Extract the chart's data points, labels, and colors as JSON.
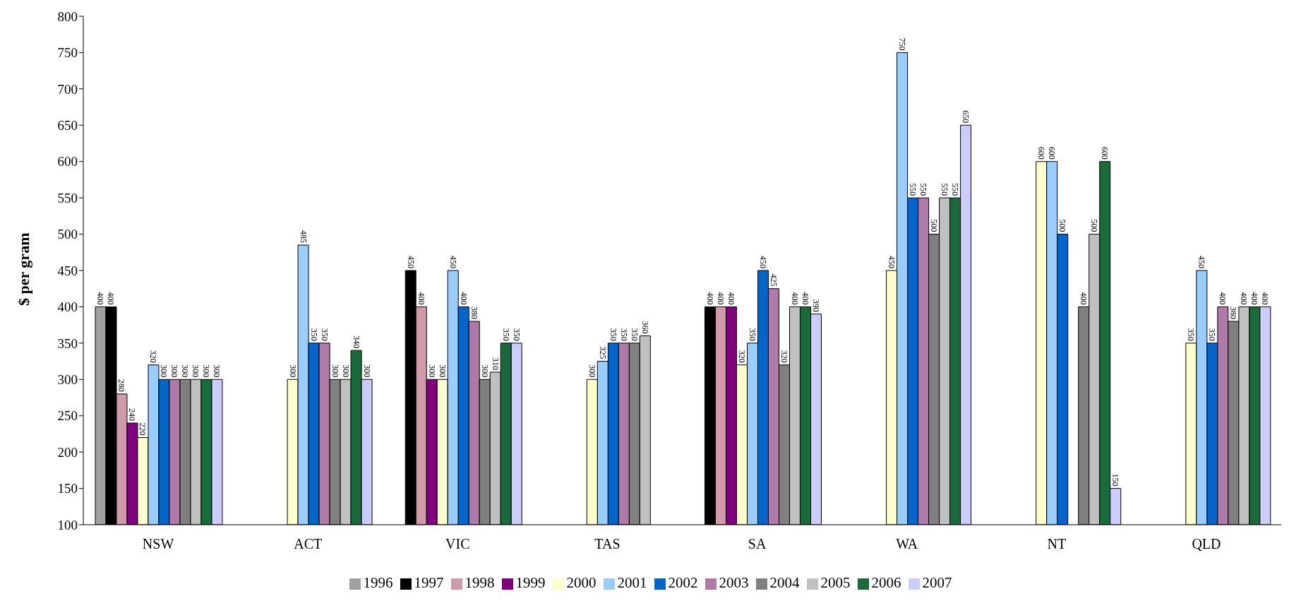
{
  "chart_data": {
    "type": "bar",
    "ylabel": "$ per gram",
    "categories": [
      "NSW",
      "ACT",
      "VIC",
      "TAS",
      "SA",
      "WA",
      "NT",
      "QLD"
    ],
    "series": [
      {
        "name": "1996",
        "color": "#a0a0a0",
        "values": [
          400,
          null,
          null,
          null,
          null,
          null,
          null,
          null
        ]
      },
      {
        "name": "1997",
        "color": "#000000",
        "values": [
          400,
          null,
          450,
          null,
          400,
          null,
          null,
          null
        ]
      },
      {
        "name": "1998",
        "color": "#d09aa8",
        "values": [
          280,
          null,
          400,
          null,
          400,
          null,
          null,
          null
        ]
      },
      {
        "name": "1999",
        "color": "#800080",
        "values": [
          240,
          null,
          300,
          null,
          400,
          null,
          null,
          null
        ]
      },
      {
        "name": "2000",
        "color": "#ffffcc",
        "values": [
          220,
          300,
          300,
          300,
          320,
          450,
          600,
          350
        ]
      },
      {
        "name": "2001",
        "color": "#99ccff",
        "values": [
          320,
          485,
          450,
          325,
          350,
          750,
          600,
          450
        ]
      },
      {
        "name": "2002",
        "color": "#0066cc",
        "values": [
          300,
          350,
          400,
          350,
          450,
          550,
          500,
          350
        ]
      },
      {
        "name": "2003",
        "color": "#b07aa8",
        "values": [
          300,
          350,
          380,
          350,
          425,
          550,
          null,
          400
        ]
      },
      {
        "name": "2004",
        "color": "#808080",
        "values": [
          300,
          300,
          300,
          350,
          320,
          500,
          400,
          380
        ]
      },
      {
        "name": "2005",
        "color": "#c0c0c0",
        "values": [
          300,
          300,
          310,
          360,
          400,
          550,
          500,
          400
        ]
      },
      {
        "name": "2006",
        "color": "#1a6b3a",
        "values": [
          300,
          340,
          350,
          null,
          400,
          550,
          600,
          400
        ]
      },
      {
        "name": "2007",
        "color": "#ccccff",
        "values": [
          300,
          300,
          350,
          null,
          390,
          650,
          150,
          400
        ]
      }
    ],
    "ylim": [
      100,
      800
    ],
    "yticks": [
      100,
      150,
      200,
      250,
      300,
      350,
      400,
      450,
      500,
      550,
      600,
      650,
      700,
      750,
      800
    ],
    "data_labels": true,
    "grid": false,
    "legend": "bottom"
  }
}
